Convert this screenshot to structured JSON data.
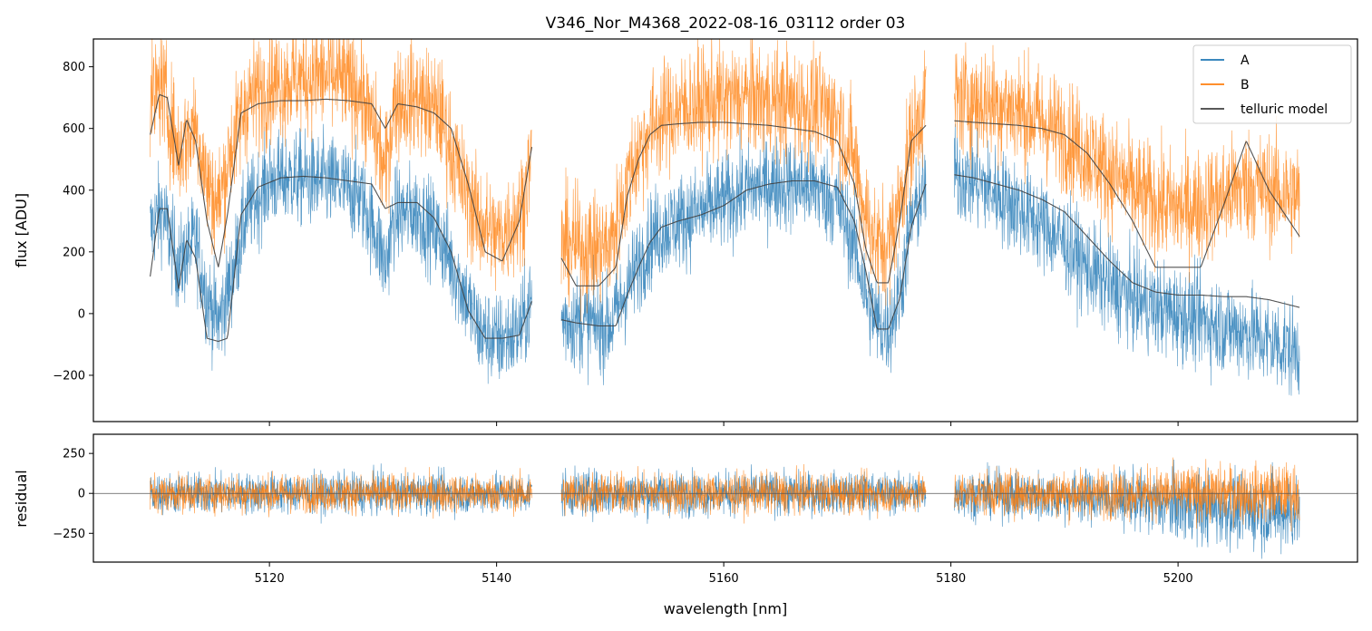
{
  "chart_data": [
    {
      "type": "line",
      "title": "V346_Nor_M4368_2022-08-16_03112  order 03",
      "xlabel": "",
      "ylabel": "flux [ADU]",
      "xlim": [
        5104.5,
        5215.8
      ],
      "ylim": [
        -350,
        890
      ],
      "xticks": [
        5120,
        5140,
        5160,
        5180,
        5200
      ],
      "yticks": [
        -200,
        0,
        200,
        400,
        600,
        800
      ],
      "ytick_labels": [
        "−200",
        "0",
        "200",
        "400",
        "600",
        "800"
      ],
      "grid": false,
      "legend_position": "top-right",
      "segments": [
        [
          5109.5,
          5143.1
        ],
        [
          5145.7,
          5177.8
        ],
        [
          5180.3,
          5210.7
        ]
      ],
      "series": [
        {
          "name": "A",
          "color": "#1f77b4",
          "noise": 110,
          "x": [
            5109.5,
            5110.5,
            5112.0,
            5113.5,
            5114.5,
            5115.5,
            5116.5,
            5118,
            5120,
            5122,
            5124,
            5126,
            5128,
            5129.5,
            5130.2,
            5131,
            5133,
            5135,
            5137,
            5138.5,
            5140,
            5142,
            5143.1,
            5145.7,
            5148,
            5150,
            5151,
            5152,
            5153,
            5154,
            5156,
            5158,
            5160,
            5162,
            5164,
            5166,
            5168,
            5170,
            5171.5,
            5172.5,
            5173.5,
            5174.5,
            5175.5,
            5176.5,
            5177.8,
            5180.3,
            5182,
            5184,
            5186,
            5188,
            5190,
            5192,
            5194,
            5196,
            5198,
            5200,
            5202,
            5204,
            5206,
            5208,
            5210.7
          ],
          "values": [
            270,
            340,
            150,
            240,
            50,
            -30,
            90,
            330,
            430,
            440,
            430,
            420,
            380,
            250,
            150,
            320,
            330,
            250,
            80,
            -60,
            -90,
            -60,
            40,
            -20,
            -30,
            -40,
            40,
            120,
            200,
            260,
            300,
            330,
            360,
            400,
            420,
            420,
            410,
            360,
            220,
            60,
            -30,
            -50,
            60,
            300,
            420,
            450,
            430,
            390,
            340,
            290,
            230,
            150,
            90,
            50,
            20,
            0,
            -20,
            -40,
            -60,
            -90,
            -120
          ]
        },
        {
          "name": "B",
          "color": "#ff7f0e",
          "noise": 130,
          "x": [
            5109.5,
            5110.5,
            5112.0,
            5113.5,
            5114.5,
            5115.5,
            5116.5,
            5118,
            5120,
            5122,
            5124,
            5126,
            5128,
            5129.5,
            5130.2,
            5131,
            5133,
            5135,
            5137,
            5138.5,
            5140,
            5142,
            5143.1,
            5145.7,
            5148,
            5150,
            5151,
            5152,
            5153,
            5154,
            5156,
            5158,
            5160,
            5162,
            5164,
            5166,
            5168,
            5170,
            5171.5,
            5172.5,
            5173.5,
            5174.5,
            5175.5,
            5176.5,
            5177.8,
            5180.3,
            5182,
            5184,
            5186,
            5188,
            5190,
            5192,
            5194,
            5196,
            5198,
            5200,
            5202,
            5204,
            5206,
            5208,
            5210.7
          ],
          "values": [
            680,
            740,
            520,
            620,
            420,
            350,
            520,
            690,
            740,
            760,
            770,
            760,
            720,
            560,
            450,
            690,
            700,
            650,
            420,
            300,
            240,
            320,
            500,
            230,
            210,
            220,
            350,
            480,
            560,
            620,
            660,
            680,
            690,
            700,
            690,
            680,
            670,
            640,
            500,
            320,
            220,
            220,
            360,
            560,
            700,
            700,
            690,
            680,
            660,
            620,
            580,
            520,
            460,
            400,
            360,
            340,
            350,
            380,
            420,
            400,
            380
          ]
        },
        {
          "name": "telluric model",
          "color": "#404040",
          "x": [
            5109.5,
            5110.3,
            5111.0,
            5112.0,
            5112.7,
            5113.5,
            5114.5,
            5115.5,
            5116.3,
            5117.5,
            5119,
            5121,
            5123,
            5125,
            5127,
            5129,
            5130.2,
            5131.3,
            5133,
            5134.5,
            5136,
            5137.5,
            5139,
            5140.5,
            5142,
            5143.1,
            5145.7,
            5147,
            5149,
            5150.5,
            5151.5,
            5152.5,
            5153.5,
            5154.5,
            5156,
            5158,
            5160,
            5162,
            5164,
            5166,
            5168,
            5170,
            5171.5,
            5172.5,
            5173.5,
            5174.5,
            5175.5,
            5176.5,
            5177.8,
            5180.3,
            5182,
            5184,
            5186,
            5188,
            5190,
            5192,
            5194,
            5196,
            5198,
            5200,
            5202,
            5204,
            5206,
            5208,
            5210.7
          ],
          "upper_values": [
            580,
            710,
            700,
            480,
            630,
            560,
            300,
            150,
            320,
            650,
            680,
            690,
            690,
            695,
            690,
            680,
            600,
            680,
            670,
            650,
            600,
            420,
            200,
            170,
            300,
            540,
            180,
            90,
            90,
            150,
            380,
            500,
            580,
            610,
            615,
            620,
            620,
            615,
            610,
            600,
            590,
            560,
            420,
            210,
            100,
            100,
            300,
            560,
            610,
            625,
            620,
            615,
            610,
            600,
            580,
            520,
            420,
            300,
            150,
            150,
            150,
            350,
            560,
            400,
            250
          ],
          "lower_values": [
            120,
            340,
            340,
            80,
            240,
            180,
            -80,
            -90,
            -80,
            320,
            410,
            440,
            445,
            440,
            430,
            420,
            340,
            360,
            360,
            310,
            200,
            10,
            -80,
            -80,
            -70,
            40,
            -20,
            -30,
            -40,
            -40,
            60,
            150,
            230,
            280,
            300,
            320,
            350,
            400,
            420,
            430,
            430,
            410,
            300,
            140,
            -50,
            -50,
            50,
            280,
            420,
            450,
            440,
            420,
            400,
            370,
            330,
            250,
            170,
            100,
            70,
            60,
            60,
            55,
            55,
            45,
            20
          ]
        }
      ]
    },
    {
      "type": "line",
      "title": "",
      "xlabel": "wavelength [nm]",
      "ylabel": "residual",
      "xlim": [
        5104.5,
        5215.8
      ],
      "ylim": [
        -430,
        370
      ],
      "xticks": [
        5120,
        5140,
        5160,
        5180,
        5200
      ],
      "xtick_labels": [
        "5120",
        "5140",
        "5160",
        "5180",
        "5200"
      ],
      "yticks": [
        -250,
        0,
        250
      ],
      "ytick_labels": [
        "−250",
        "0",
        "250"
      ],
      "grid": false,
      "zero_line": true,
      "segments": [
        [
          5109.5,
          5143.1
        ],
        [
          5145.7,
          5177.8
        ],
        [
          5180.3,
          5210.7
        ]
      ],
      "series": [
        {
          "name": "A",
          "color": "#1f77b4",
          "x": [
            5109.5,
            5143.1,
            5145.7,
            5177.8,
            5180.3,
            5195,
            5200,
            5210.7
          ],
          "values": [
            0,
            0,
            0,
            0,
            0,
            -30,
            -80,
            -120
          ],
          "spread": [
            150,
            150,
            170,
            150,
            170,
            200,
            260,
            300
          ]
        },
        {
          "name": "B",
          "color": "#ff7f0e",
          "x": [
            5109.5,
            5143.1,
            5145.7,
            5177.8,
            5180.3,
            5195,
            5200,
            5210.7
          ],
          "values": [
            0,
            0,
            0,
            0,
            0,
            0,
            0,
            0
          ],
          "spread": [
            140,
            140,
            160,
            140,
            160,
            180,
            200,
            220
          ]
        }
      ]
    }
  ]
}
